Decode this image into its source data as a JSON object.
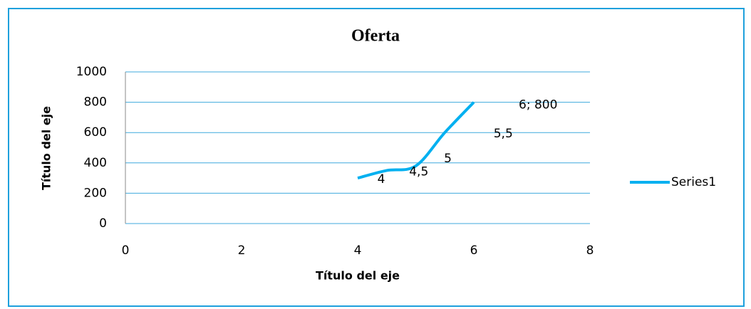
{
  "chart_data": {
    "type": "scatter",
    "title": "Oferta",
    "x_label": "Título del eje",
    "y_label": "Título del eje",
    "series": [
      {
        "name": "Series1",
        "color": "#00b0f0",
        "x": [
          4,
          4.5,
          5,
          5.5,
          6
        ],
        "values": [
          300,
          350,
          380,
          600,
          800
        ],
        "value_labels": [
          "4",
          "4,5",
          "5",
          "5,5",
          "6; 800"
        ]
      }
    ],
    "smooth": true,
    "xlim": [
      0,
      8
    ],
    "xticks": [
      0,
      2,
      4,
      6,
      8
    ],
    "ylim": [
      0,
      1000
    ],
    "yticks": [
      0,
      200,
      400,
      600,
      800,
      1000
    ],
    "grid": true,
    "grid_color": "#3fa9dd",
    "legend": "right"
  }
}
